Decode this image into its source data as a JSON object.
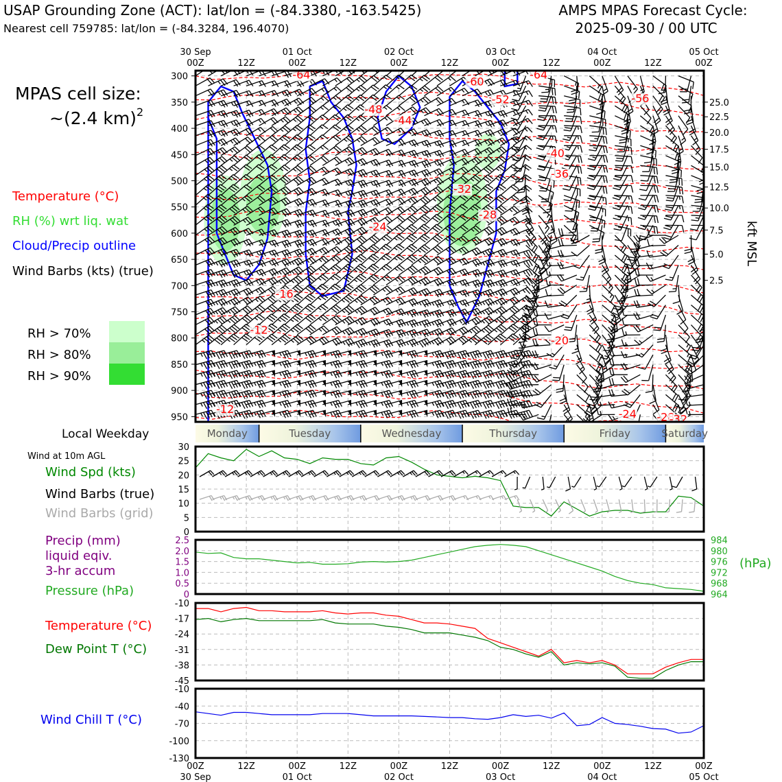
{
  "header": {
    "title_left": "USAP Grounding Zone (ACT): lat/lon = (-84.3380, -163.5425)",
    "subtitle_left": "Nearest cell 759785: lat/lon = (-84.3284, 196.4070)",
    "title_right_1": "AMPS MPAS Forecast Cycle:",
    "title_right_2": "2025-09-30 / 00 UTC"
  },
  "cell_size": {
    "label": "MPAS cell size:",
    "value": "~(2.4 km)",
    "exponent": "2"
  },
  "legend": {
    "temperature": "Temperature (°C)",
    "rh": "RH (%) wrt liq. wat",
    "cloud": "Cloud/Precip outline",
    "wind": "Wind Barbs (kts) (true)",
    "rh70": "RH > 70%",
    "rh80": "RH > 80%",
    "rh90": "RH > 90%"
  },
  "colors": {
    "temperature": "#ff0000",
    "rh": "#33dd33",
    "cloud": "#0000ff",
    "rh70": "#ccffcc",
    "rh80": "#99ee99",
    "rh90": "#33dd33",
    "wind_chill": "#0000ee",
    "pressure": "#22aa22",
    "precip": "#800080",
    "dewpoint": "#007700",
    "wind_speed": "#008800",
    "grid_barbs": "#aaaaaa"
  },
  "weekday": {
    "label": "Local Weekday",
    "days": [
      "Monday",
      "Tuesday",
      "Wednesday",
      "Thursday",
      "Friday",
      "Saturday"
    ]
  },
  "time_axis": {
    "hours": [
      0,
      12,
      24,
      36,
      48,
      60,
      72,
      84,
      96,
      108,
      120
    ],
    "hour_labels": [
      "00Z",
      "12Z",
      "00Z",
      "12Z",
      "00Z",
      "12Z",
      "00Z",
      "12Z",
      "00Z",
      "12Z",
      "00Z"
    ],
    "date_labels": [
      "30 Sep",
      "",
      "01 Oct",
      "",
      "02 Oct",
      "",
      "03 Oct",
      "",
      "04 Oct",
      "",
      "05 Oct"
    ]
  },
  "chart_data": [
    {
      "id": "cross_section",
      "type": "contour",
      "x_range_hours": [
        0,
        120
      ],
      "y_pressure_range_hpa": [
        290,
        960
      ],
      "y_ticks_hpa": [
        300,
        350,
        400,
        450,
        500,
        550,
        600,
        650,
        700,
        750,
        800,
        850,
        900,
        950
      ],
      "y2_label": "kft MSL",
      "y2_ticks": [
        {
          "kft": "25.0",
          "hpa": 350
        },
        {
          "kft": "22.5",
          "hpa": 378
        },
        {
          "kft": "20.0",
          "hpa": 408
        },
        {
          "kft": "17.5",
          "hpa": 440
        },
        {
          "kft": "15.0",
          "hpa": 474
        },
        {
          "kft": "12.5",
          "hpa": 512
        },
        {
          "kft": "10.0",
          "hpa": 552
        },
        {
          "kft": "7.5",
          "hpa": 594
        },
        {
          "kft": "5.0",
          "hpa": 640
        },
        {
          "kft": "2.5",
          "hpa": 690
        }
      ],
      "temp_labels": [
        {
          "text": "-64",
          "h": 25,
          "p": 305
        },
        {
          "text": "-60",
          "h": 66,
          "p": 318
        },
        {
          "text": "-64",
          "h": 81,
          "p": 305
        },
        {
          "text": "-52",
          "h": 72,
          "p": 352
        },
        {
          "text": "-56",
          "h": 105,
          "p": 350
        },
        {
          "text": "-48",
          "h": 42,
          "p": 371
        },
        {
          "text": "-44",
          "h": 49,
          "p": 392
        },
        {
          "text": "-40",
          "h": 85,
          "p": 455
        },
        {
          "text": "-36",
          "h": 86,
          "p": 494
        },
        {
          "text": "-32",
          "h": 63,
          "p": 523
        },
        {
          "text": "-28",
          "h": 69,
          "p": 572
        },
        {
          "text": "-24",
          "h": 43,
          "p": 595
        },
        {
          "text": "-16",
          "h": 21,
          "p": 723
        },
        {
          "text": "-12",
          "h": 15,
          "p": 792
        },
        {
          "text": "-20",
          "h": 86,
          "p": 812
        },
        {
          "text": "-12",
          "h": 7,
          "p": 943
        },
        {
          "text": "-24",
          "h": 102,
          "p": 952
        },
        {
          "text": "-28",
          "h": 111,
          "p": 958
        },
        {
          "text": "-32",
          "h": 114,
          "p": 962
        }
      ],
      "rh_regions": [
        {
          "level": 70,
          "h": 7,
          "p": 575,
          "rx_h": 5,
          "ry_p": 85
        },
        {
          "level": 80,
          "h": 7,
          "p": 575,
          "rx_h": 3.5,
          "ry_p": 60
        },
        {
          "level": 70,
          "h": 16,
          "p": 530,
          "rx_h": 5.5,
          "ry_p": 90
        },
        {
          "level": 80,
          "h": 16,
          "p": 545,
          "rx_h": 4,
          "ry_p": 55
        },
        {
          "level": 70,
          "h": 63,
          "p": 545,
          "rx_h": 6,
          "ry_p": 95
        },
        {
          "level": 80,
          "h": 63,
          "p": 560,
          "rx_h": 4.5,
          "ry_p": 65
        },
        {
          "level": 70,
          "h": 69,
          "p": 445,
          "rx_h": 3,
          "ry_p": 35
        }
      ]
    },
    {
      "id": "wind10m",
      "type": "line",
      "title": "Wind at 10m AGL",
      "series_label": "Wind Spd (kts)",
      "barbs_true_label": "Wind Barbs (true)",
      "barbs_grid_label": "Wind Barbs (grid)",
      "ylim": [
        0,
        30
      ],
      "yticks": [
        0,
        5,
        10,
        15,
        20,
        25,
        30
      ],
      "x": [
        0,
        3,
        6,
        9,
        12,
        15,
        18,
        21,
        24,
        27,
        30,
        33,
        36,
        39,
        42,
        45,
        48,
        51,
        54,
        57,
        60,
        63,
        66,
        69,
        72,
        75,
        78,
        81,
        84,
        87,
        90,
        93,
        96,
        99,
        102,
        105,
        108,
        111,
        114,
        117,
        120
      ],
      "values": [
        22.5,
        27.5,
        26,
        25,
        29,
        26.5,
        28.5,
        26,
        25.5,
        24,
        26,
        25.5,
        25.5,
        24,
        23.5,
        26,
        26.5,
        24.5,
        22,
        20,
        19.5,
        19,
        19.5,
        19,
        18,
        9,
        8.5,
        8.5,
        5.5,
        10.5,
        8,
        5.5,
        7,
        7.5,
        7.5,
        6.5,
        7,
        7,
        12.5,
        12,
        9
      ]
    },
    {
      "id": "precip_pressure",
      "type": "line",
      "precip_label": "Precip (mm)",
      "precip_sub1": "liquid eqiv.",
      "precip_sub2": "3-hr accum",
      "pressure_label": "Pressure (hPa)",
      "pressure_unit": "(hPa)",
      "precip_ylim": [
        0,
        2.5
      ],
      "precip_ticks": [
        "0",
        "0.5",
        "1.0",
        "1.5",
        "2.0",
        "2.5"
      ],
      "pressure_ylim": [
        964,
        984
      ],
      "pressure_ticks": [
        964,
        968,
        972,
        976,
        980,
        984
      ],
      "x": [
        0,
        3,
        6,
        9,
        12,
        15,
        18,
        21,
        24,
        27,
        30,
        33,
        36,
        39,
        42,
        45,
        48,
        51,
        54,
        57,
        60,
        63,
        66,
        69,
        72,
        75,
        78,
        81,
        84,
        87,
        90,
        93,
        96,
        99,
        102,
        105,
        108,
        111,
        114,
        117,
        120
      ],
      "pressure": [
        979.5,
        979,
        979.2,
        977.5,
        977,
        977,
        976.5,
        976,
        975.5,
        975.7,
        975,
        975,
        975.2,
        975.8,
        976,
        975.8,
        976,
        976.5,
        977.5,
        978.5,
        979.5,
        980.5,
        981.5,
        982,
        982.3,
        982,
        981.5,
        980,
        978.5,
        977,
        975.5,
        974,
        972.5,
        970.5,
        969,
        968,
        967.5,
        966.3,
        966,
        965.7,
        965
      ],
      "precip": [
        0,
        0,
        0,
        0,
        0,
        0,
        0,
        0,
        0,
        0,
        0,
        0,
        0,
        0,
        0,
        0,
        0,
        0,
        0,
        0,
        0,
        0,
        0,
        0,
        0,
        0,
        0,
        0,
        0,
        0,
        0,
        0,
        0,
        0,
        0,
        0,
        0,
        0,
        0,
        0,
        0
      ]
    },
    {
      "id": "temp_dew",
      "type": "line",
      "temp_label": "Temperature (°C)",
      "dew_label": "Dew Point T (°C)",
      "ylim": [
        -45,
        -10
      ],
      "yticks": [
        -10,
        -17,
        -24,
        -31,
        -38,
        -45
      ],
      "x": [
        0,
        3,
        6,
        9,
        12,
        15,
        18,
        21,
        24,
        27,
        30,
        33,
        36,
        39,
        42,
        45,
        48,
        51,
        54,
        57,
        60,
        63,
        66,
        69,
        72,
        75,
        78,
        81,
        84,
        87,
        90,
        93,
        96,
        99,
        102,
        105,
        108,
        111,
        114,
        117,
        120
      ],
      "temperature": [
        -12.5,
        -12.5,
        -14,
        -12.5,
        -12,
        -13.5,
        -13.5,
        -14,
        -14,
        -14,
        -13.5,
        -14.5,
        -15,
        -14.5,
        -14.5,
        -15.5,
        -16,
        -17.5,
        -19,
        -19,
        -19.5,
        -20.5,
        -21.5,
        -26,
        -28,
        -30,
        -32,
        -34,
        -31,
        -37,
        -36,
        -37,
        -36,
        -38,
        -42,
        -42,
        -42,
        -39,
        -37,
        -35.5,
        -35.5
      ],
      "dewpoint": [
        -17.5,
        -17,
        -18.5,
        -17.5,
        -17,
        -18,
        -18,
        -18,
        -18,
        -18,
        -17.5,
        -19,
        -19.5,
        -19.5,
        -19.5,
        -20.5,
        -21,
        -22,
        -23.5,
        -23.5,
        -23.5,
        -24.5,
        -25.5,
        -27,
        -30,
        -31,
        -33,
        -34.5,
        -32,
        -38,
        -37,
        -37.5,
        -37,
        -38.5,
        -43.5,
        -44,
        -44,
        -40.5,
        -38,
        -36.5,
        -36.5
      ]
    },
    {
      "id": "wind_chill",
      "type": "line",
      "label": "Wind Chill T (°C)",
      "ylim": [
        -130,
        -10
      ],
      "yticks": [
        -10,
        -40,
        -70,
        -100,
        -130
      ],
      "x": [
        0,
        3,
        6,
        9,
        12,
        15,
        18,
        21,
        24,
        27,
        30,
        33,
        36,
        39,
        42,
        45,
        48,
        51,
        54,
        57,
        60,
        63,
        66,
        69,
        72,
        75,
        78,
        81,
        84,
        87,
        90,
        93,
        96,
        99,
        102,
        105,
        108,
        111,
        114,
        117,
        120
      ],
      "values": [
        -50,
        -53,
        -56,
        -51,
        -51,
        -53,
        -55,
        -55,
        -55,
        -55,
        -53,
        -53,
        -53,
        -55,
        -57,
        -57,
        -57,
        -57,
        -58,
        -59,
        -60,
        -60,
        -62,
        -63,
        -60,
        -55,
        -58,
        -56,
        -61,
        -52,
        -74,
        -72,
        -60,
        -70,
        -72,
        -75,
        -79,
        -80,
        -87,
        -85,
        -74
      ]
    }
  ]
}
